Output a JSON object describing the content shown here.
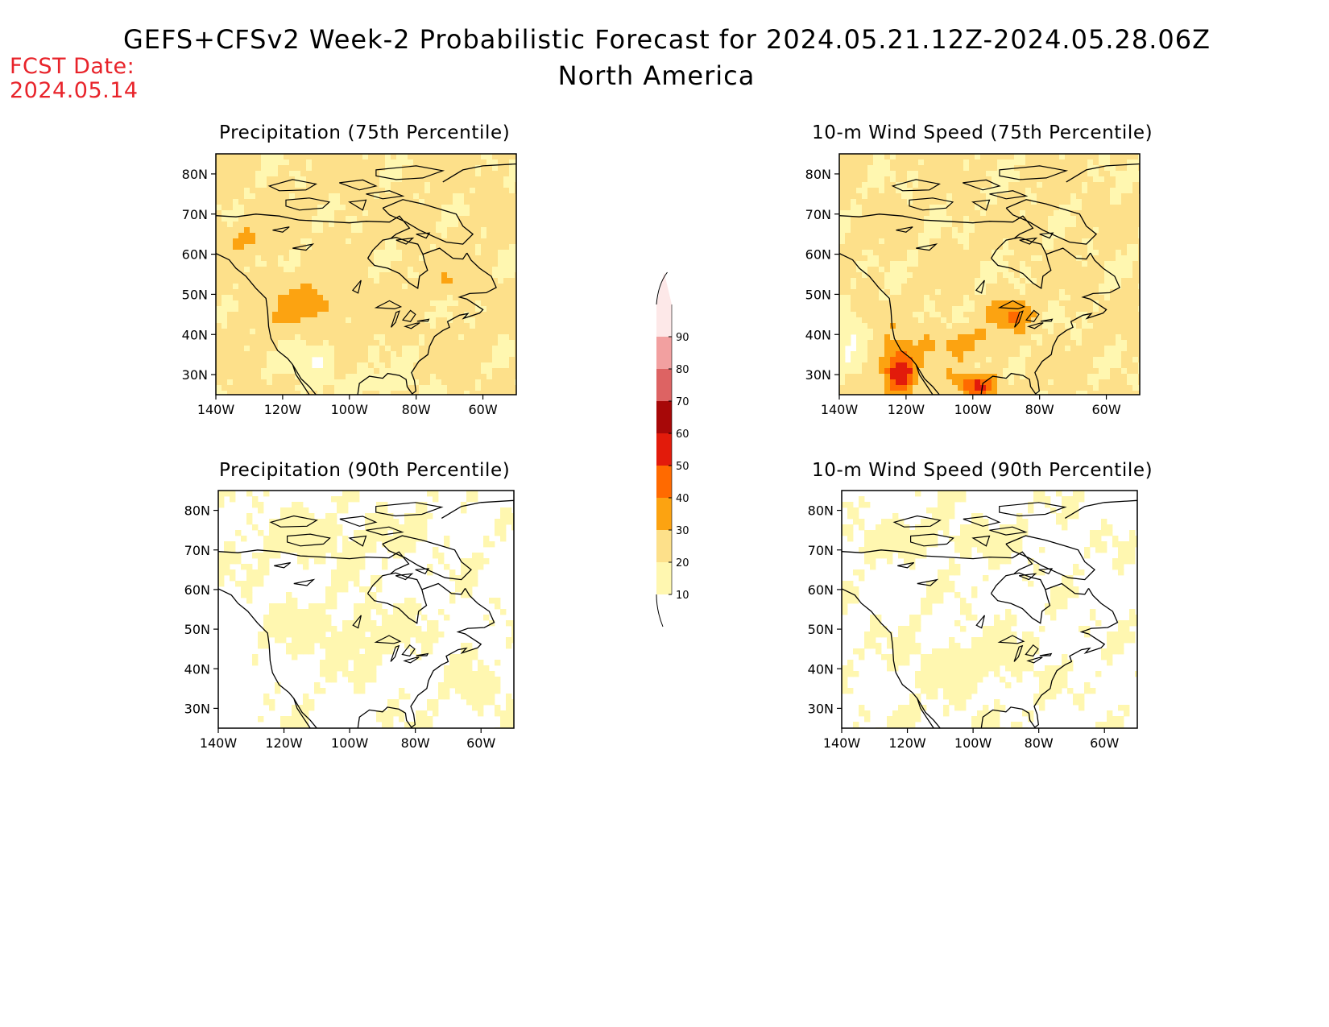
{
  "header": {
    "title": "GEFS+CFSv2 Week-2 Probabilistic Forecast for 2024.05.21.12Z-2024.05.28.06Z",
    "subtitle": "North America",
    "fcst_label": "FCST Date:",
    "fcst_date": "2024.05.14"
  },
  "map_axes": {
    "lat_labels": [
      "80N",
      "70N",
      "60N",
      "50N",
      "40N",
      "30N"
    ],
    "lat_values": [
      80,
      70,
      60,
      50,
      40,
      30
    ],
    "lon_labels": [
      "140W",
      "120W",
      "100W",
      "80W",
      "60W"
    ],
    "lon_values": [
      -140,
      -120,
      -100,
      -80,
      -60
    ],
    "lon_range": [
      -140,
      -50
    ],
    "lat_range": [
      25,
      85
    ]
  },
  "panels": [
    {
      "id": "precip75",
      "title": "Precipitation (75th Percentile)",
      "intensity": "moderate",
      "focus": "west-central"
    },
    {
      "id": "wind75",
      "title": "10-m Wind Speed (75th Percentile)",
      "intensity": "high",
      "focus": "southwest"
    },
    {
      "id": "precip90",
      "title": "Precipitation (90th Percentile)",
      "intensity": "low",
      "focus": "north-central"
    },
    {
      "id": "wind90",
      "title": "10-m Wind Speed (90th Percentile)",
      "intensity": "low",
      "focus": "central"
    }
  ],
  "colorbar": {
    "levels": [
      "10",
      "20",
      "30",
      "40",
      "50",
      "60",
      "70",
      "80",
      "90"
    ],
    "colors": [
      "#fff7b0",
      "#fde08a",
      "#fca311",
      "#ff6a00",
      "#e21b0b",
      "#a70808",
      "#dd6363",
      "#f2a0a0",
      "#fde8e8"
    ]
  }
}
